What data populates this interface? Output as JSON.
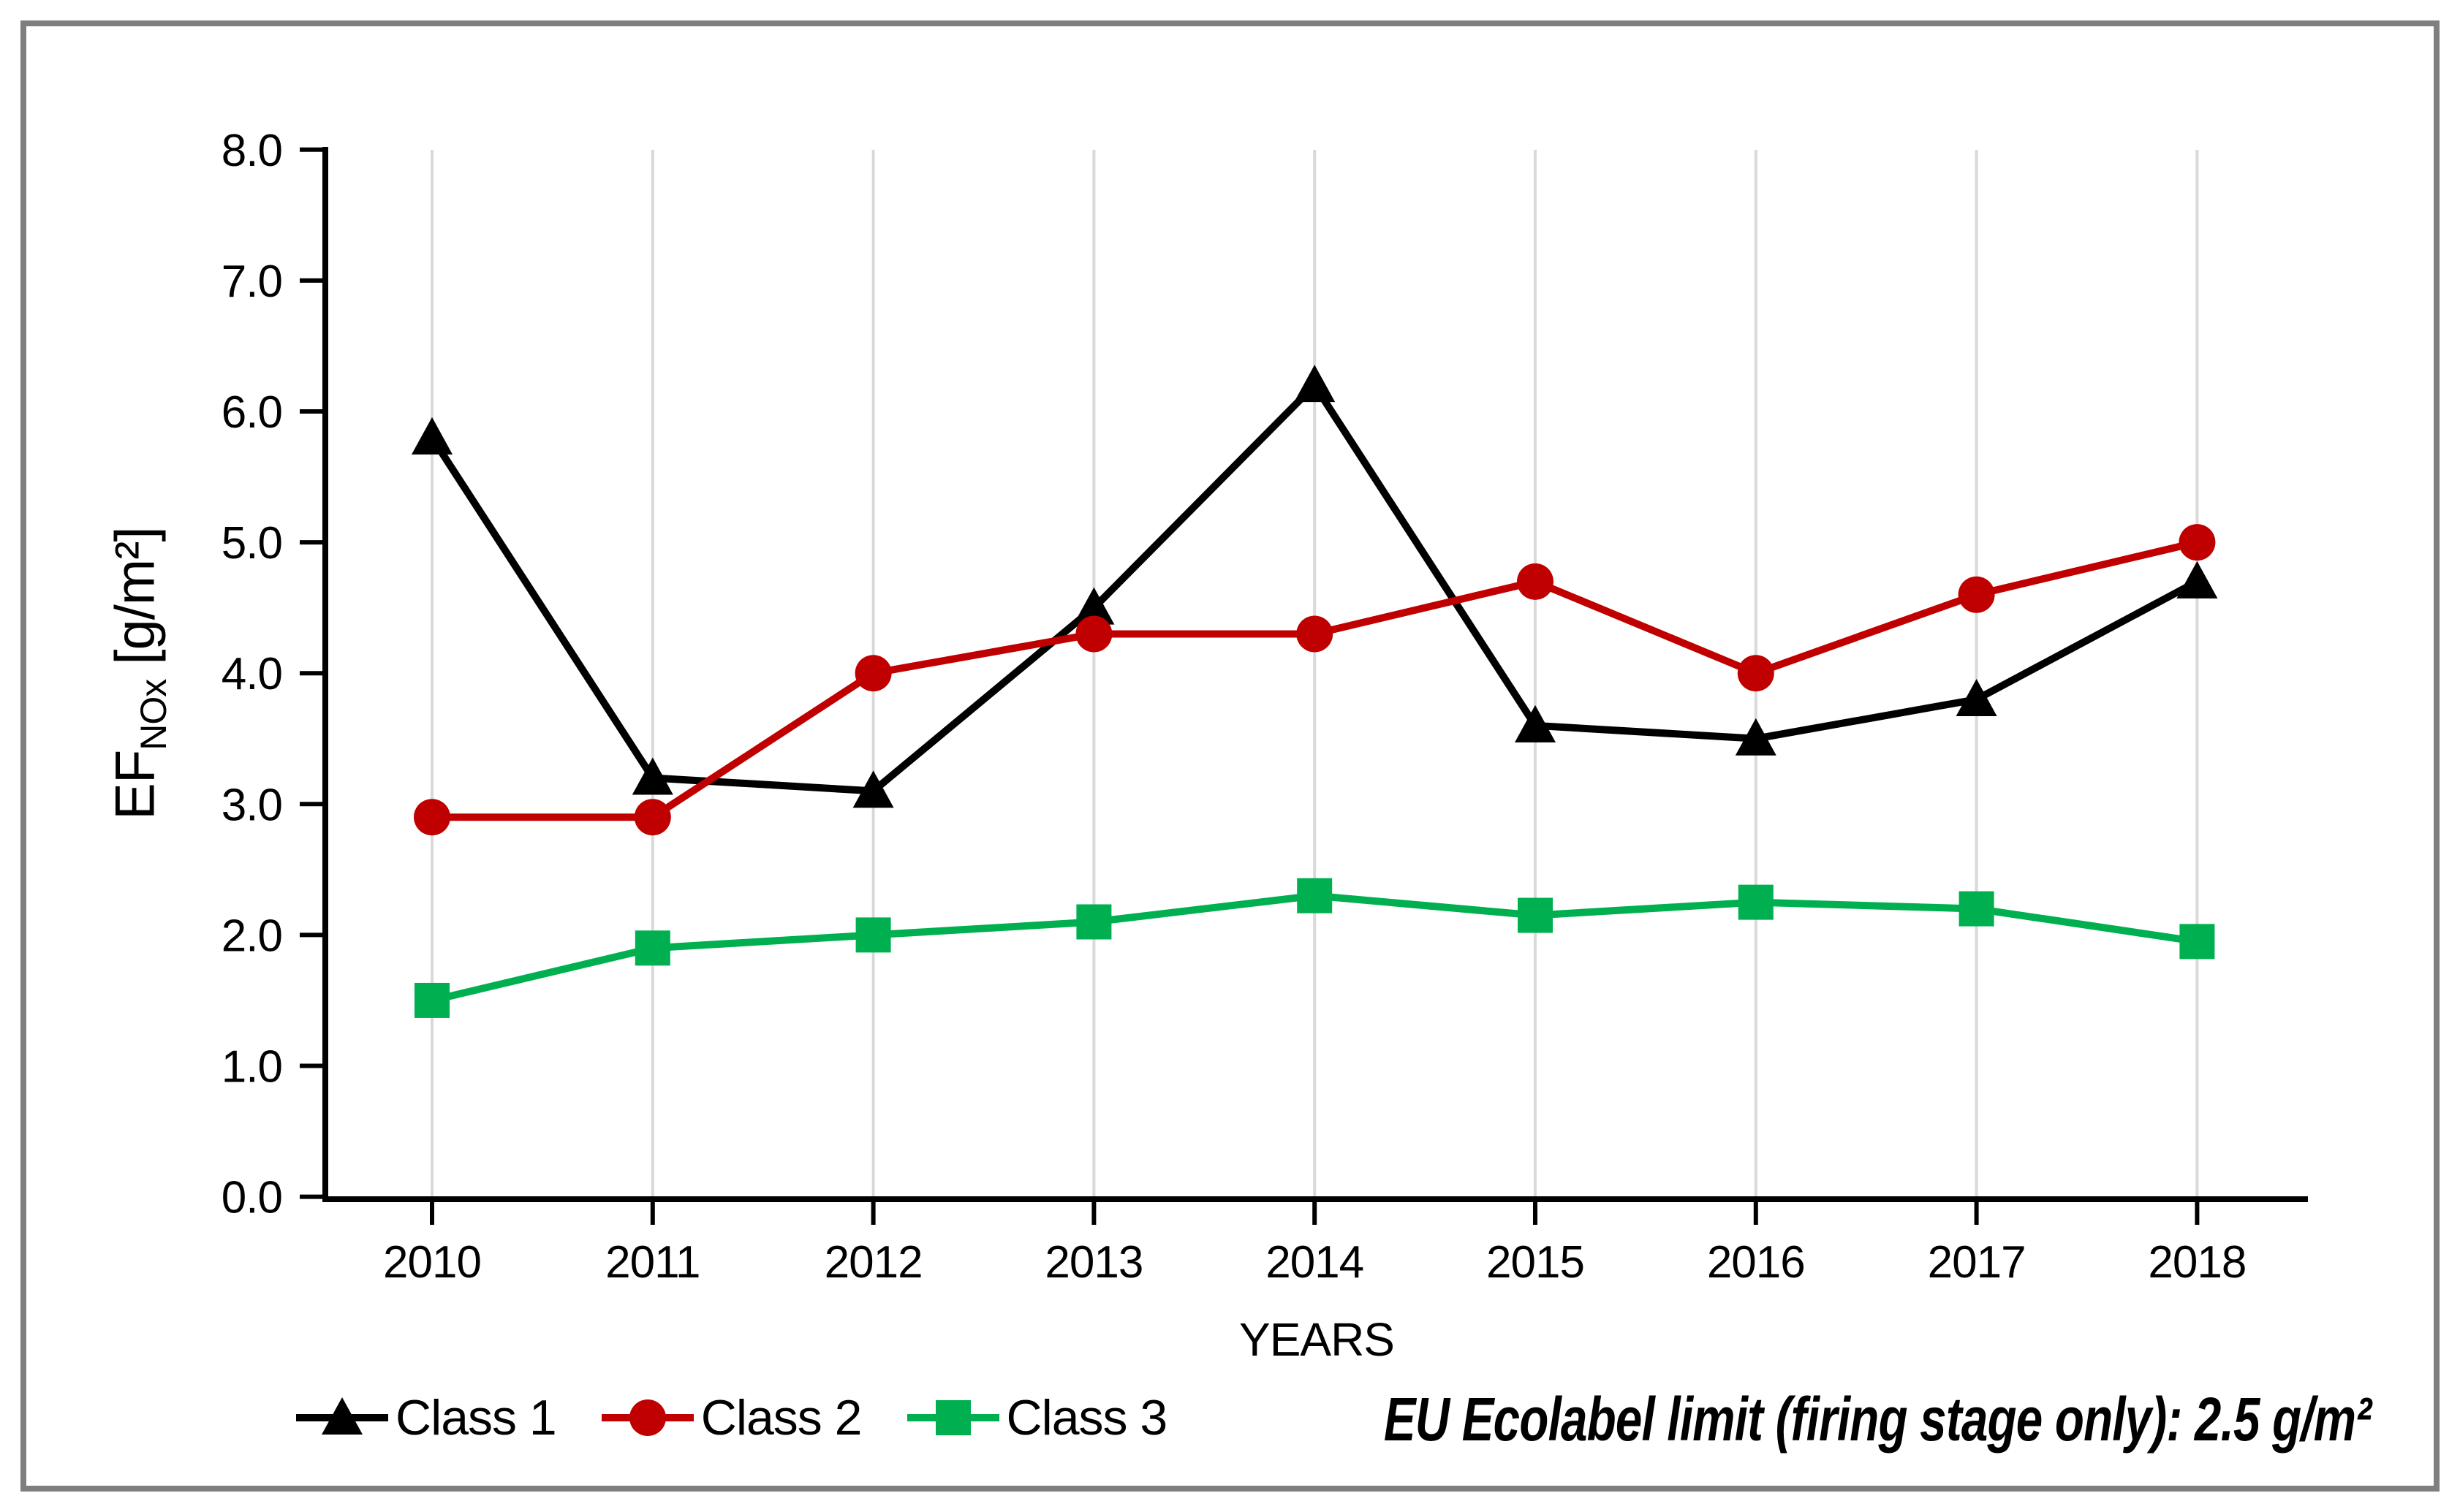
{
  "chart_data": {
    "type": "line",
    "title": "",
    "xlabel": "YEARS",
    "ylabel": {
      "main": "EF",
      "sub": "NOx",
      "units": "[g/m²]"
    },
    "ylabel_text": "EF NOx [g/m²]",
    "x_categories": [
      "2010",
      "2011",
      "2012",
      "2013",
      "2014",
      "2015",
      "2016",
      "2017",
      "2018"
    ],
    "ylim": [
      0.0,
      8.0
    ],
    "y_tick_interval": 1.0,
    "y_tick_labels": [
      "0.0",
      "1.0",
      "2.0",
      "3.0",
      "4.0",
      "5.0",
      "6.0",
      "7.0",
      "8.0"
    ],
    "grid": {
      "vertical": true,
      "horizontal": false,
      "color": "#D9D9D9"
    },
    "legend_position": "bottom-left",
    "series": [
      {
        "name": "Class 1",
        "color": "#000000",
        "marker": "triangle",
        "values": [
          5.8,
          3.2,
          3.1,
          4.5,
          6.2,
          3.6,
          3.5,
          3.8,
          4.7
        ]
      },
      {
        "name": "Class 2",
        "color": "#C00000",
        "marker": "circle",
        "values": [
          2.9,
          2.9,
          4.0,
          4.3,
          4.3,
          4.7,
          4.0,
          4.6,
          5.0
        ]
      },
      {
        "name": "Class 3",
        "color": "#00B050",
        "marker": "square",
        "values": [
          1.5,
          1.9,
          2.0,
          2.1,
          2.3,
          2.15,
          2.25,
          2.2,
          1.95
        ]
      }
    ],
    "annotation": "EU Ecolabel limit (firing stage only): 2.5 g/m²"
  },
  "style": {
    "frame_color": "#7F7F7F",
    "axis_color": "#000000",
    "background": "#FFFFFF"
  }
}
